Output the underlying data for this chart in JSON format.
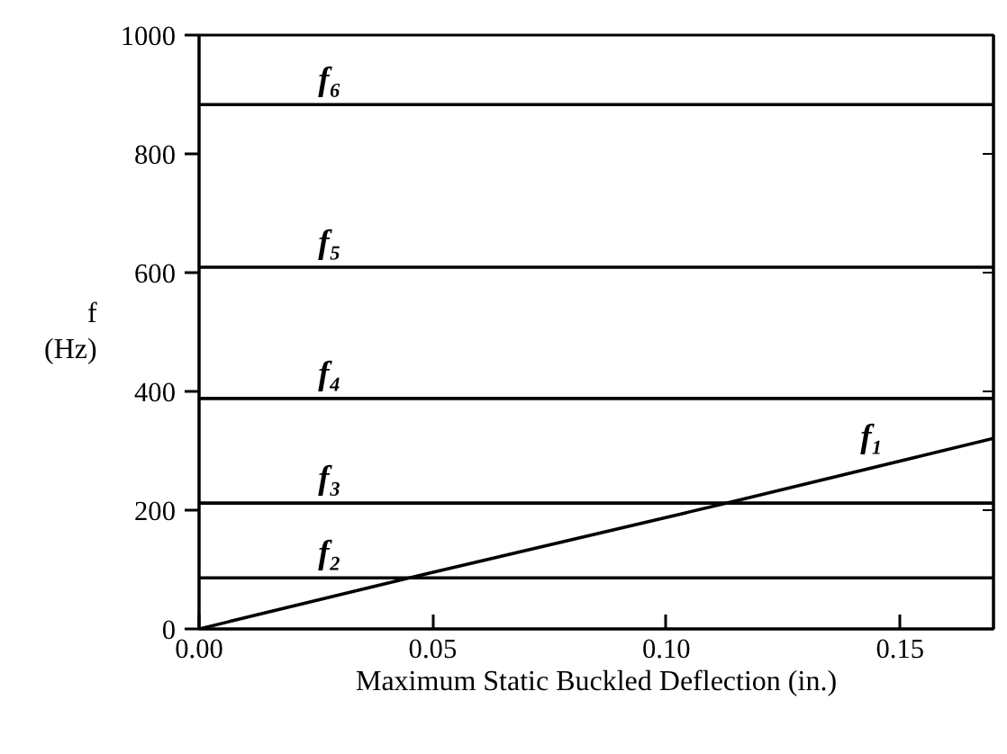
{
  "chart_data": {
    "type": "line",
    "xlabel": "Maximum Static Buckled Deflection (in.)",
    "ylabel": "f\n(Hz)",
    "xlim": [
      0,
      0.17
    ],
    "ylim": [
      0,
      1000
    ],
    "xticks": [
      {
        "value": 0,
        "label": "0.00"
      },
      0.05,
      {
        "value": 0.1,
        "label": "0.10"
      },
      0.15
    ],
    "yticks": [
      0,
      200,
      400,
      600,
      800,
      1000
    ],
    "grid": false,
    "marker": "none",
    "line_style": "solid",
    "series": [
      {
        "name": "f₁",
        "color": "#000000",
        "x": [
          0,
          0.045,
          0.113,
          0.17
        ],
        "values": [
          0,
          86,
          212,
          321
        ]
      },
      {
        "name": "f₂",
        "color": "#000000",
        "x": [
          0,
          0.17
        ],
        "values": [
          86,
          86
        ]
      },
      {
        "name": "f₃",
        "color": "#000000",
        "x": [
          0,
          0.17
        ],
        "values": [
          212,
          212
        ]
      },
      {
        "name": "f₄",
        "color": "#000000",
        "x": [
          0,
          0.17
        ],
        "values": [
          388,
          388
        ]
      },
      {
        "name": "f₅",
        "color": "#000000",
        "x": [
          0,
          0.17
        ],
        "values": [
          609,
          609
        ]
      },
      {
        "name": "f₆",
        "color": "#000000",
        "x": [
          0,
          0.17
        ],
        "values": [
          883,
          883
        ]
      }
    ]
  }
}
